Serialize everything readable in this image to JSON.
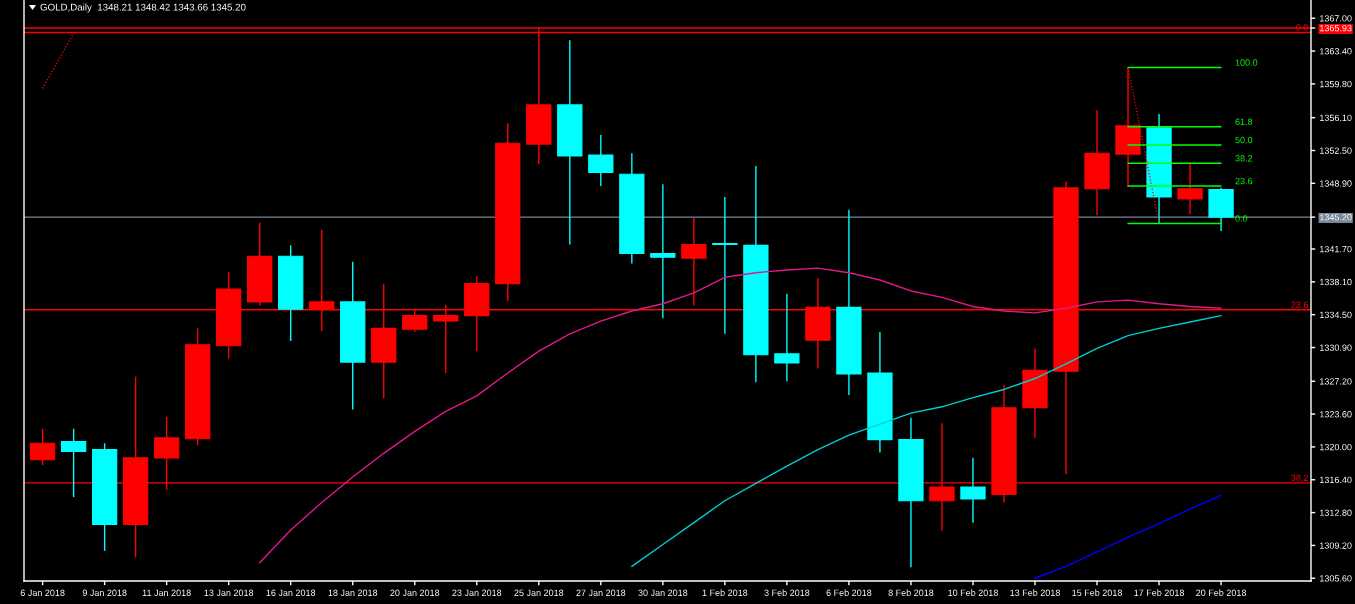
{
  "chart_data": {
    "type": "candlestick",
    "title": "GOLD,Daily  1348.21 1348.42 1343.66 1345.20",
    "categories": [
      "6 Jan 2018",
      null,
      "9 Jan 2018",
      null,
      "11 Jan 2018",
      null,
      "13 Jan 2018",
      null,
      "16 Jan 2018",
      null,
      "18 Jan 2018",
      null,
      "20 Jan 2018",
      null,
      "23 Jan 2018",
      null,
      "25 Jan 2018",
      null,
      "27 Jan 2018",
      null,
      "30 Jan 2018",
      null,
      "1 Feb 2018",
      null,
      "3 Feb 2018",
      null,
      "6 Feb 2018",
      null,
      "8 Feb 2018",
      null,
      "10 Feb 2018",
      null,
      "13 Feb 2018",
      null,
      "15 Feb 2018",
      null,
      "17 Feb 2018",
      null,
      "20 Feb 2018"
    ],
    "ohlc": [
      [
        1318.6,
        1322.0,
        1318.0,
        1320.4
      ],
      [
        1320.6,
        1322.0,
        1314.5,
        1319.5
      ],
      [
        1319.7,
        1320.4,
        1308.6,
        1311.5
      ],
      [
        1311.5,
        1327.7,
        1307.9,
        1318.8
      ],
      [
        1318.8,
        1323.3,
        1315.3,
        1321.0
      ],
      [
        1320.9,
        1333.0,
        1320.2,
        1331.2
      ],
      [
        1331.1,
        1339.2,
        1329.7,
        1337.3
      ],
      [
        1335.9,
        1344.6,
        1335.5,
        1340.9
      ],
      [
        1340.9,
        1342.1,
        1331.6,
        1335.1
      ],
      [
        1335.1,
        1343.8,
        1332.7,
        1335.9
      ],
      [
        1335.9,
        1340.3,
        1324.1,
        1329.3
      ],
      [
        1329.3,
        1337.9,
        1325.3,
        1333.0
      ],
      [
        1332.9,
        1335.1,
        1332.6,
        1334.4
      ],
      [
        1333.8,
        1335.6,
        1328.1,
        1334.4
      ],
      [
        1334.4,
        1338.7,
        1330.5,
        1337.9
      ],
      [
        1337.9,
        1355.5,
        1336.0,
        1353.3
      ],
      [
        1353.2,
        1365.9,
        1351.0,
        1357.5
      ],
      [
        1357.5,
        1364.6,
        1342.2,
        1351.9
      ],
      [
        1352.0,
        1354.2,
        1348.6,
        1350.1
      ],
      [
        1349.9,
        1352.2,
        1340.1,
        1341.2
      ],
      [
        1341.2,
        1348.8,
        1334.1,
        1340.8
      ],
      [
        1340.7,
        1345.1,
        1335.5,
        1342.2
      ],
      [
        1342.3,
        1347.4,
        1332.4,
        1342.2
      ],
      [
        1342.1,
        1350.8,
        1327.1,
        1330.1
      ],
      [
        1330.2,
        1336.8,
        1327.2,
        1329.2
      ],
      [
        1331.7,
        1338.5,
        1328.6,
        1335.3
      ],
      [
        1335.3,
        1346.0,
        1325.7,
        1328.0
      ],
      [
        1328.1,
        1332.6,
        1319.4,
        1320.8
      ],
      [
        1320.8,
        1323.2,
        1306.8,
        1314.1
      ],
      [
        1314.1,
        1322.6,
        1310.8,
        1315.6
      ],
      [
        1315.6,
        1318.8,
        1311.7,
        1314.3
      ],
      [
        1314.8,
        1326.8,
        1313.9,
        1324.3
      ],
      [
        1324.3,
        1330.8,
        1321.0,
        1328.4
      ],
      [
        1328.3,
        1349.1,
        1317.0,
        1348.4
      ],
      [
        1348.3,
        1356.9,
        1345.4,
        1352.2
      ],
      [
        1352.1,
        1361.6,
        1348.5,
        1355.2
      ],
      [
        1355.0,
        1356.5,
        1344.5,
        1347.4
      ],
      [
        1347.2,
        1351.2,
        1345.5,
        1348.3
      ],
      [
        1348.21,
        1348.42,
        1343.66,
        1345.2
      ]
    ],
    "colors": [
      "#ff0000",
      "#00ffff",
      "#00ffff",
      "#ff0000",
      "#ff0000",
      "#ff0000",
      "#ff0000",
      "#ff0000",
      "#00ffff",
      "#ff0000",
      "#00ffff",
      "#ff0000",
      "#ff0000",
      "#ff0000",
      "#ff0000",
      "#ff0000",
      "#ff0000",
      "#00ffff",
      "#00ffff",
      "#00ffff",
      "#00ffff",
      "#ff0000",
      "#00ffff",
      "#00ffff",
      "#00ffff",
      "#ff0000",
      "#00ffff",
      "#00ffff",
      "#00ffff",
      "#ff0000",
      "#00ffff",
      "#ff0000",
      "#ff0000",
      "#ff0000",
      "#ff0000",
      "#ff0000",
      "#00ffff",
      "#ff0000",
      "#00ffff"
    ],
    "series": [
      {
        "type": "line",
        "color": "#e0188c",
        "values": [
          null,
          null,
          null,
          null,
          null,
          null,
          null,
          1307.3,
          1310.9,
          1313.9,
          1316.7,
          1319.3,
          1321.7,
          1323.9,
          1325.6,
          1328.1,
          1330.5,
          1332.4,
          1333.8,
          1334.9,
          1335.7,
          1336.9,
          1338.6,
          1339.1,
          1339.4,
          1339.6,
          1339.1,
          1338.3,
          1337.1,
          1336.4,
          1335.4,
          1334.9,
          1334.7,
          1335.2,
          1335.9,
          1336.1,
          1335.7,
          1335.4,
          1335.2
        ]
      },
      {
        "type": "line",
        "color": "#00ced1",
        "values": [
          null,
          null,
          null,
          null,
          null,
          null,
          null,
          null,
          null,
          null,
          null,
          null,
          null,
          null,
          null,
          null,
          null,
          null,
          null,
          1306.9,
          1309.3,
          1311.7,
          1314.1,
          1316.0,
          1317.9,
          1319.7,
          1321.3,
          1322.5,
          1323.7,
          1324.4,
          1325.4,
          1326.3,
          1327.5,
          1329.1,
          1330.8,
          1332.2,
          1333.0,
          1333.7,
          1334.4
        ]
      },
      {
        "type": "line",
        "color": "#0000ff",
        "values": [
          null,
          null,
          null,
          null,
          null,
          null,
          null,
          null,
          null,
          null,
          null,
          null,
          null,
          null,
          null,
          null,
          null,
          null,
          null,
          null,
          null,
          null,
          null,
          null,
          null,
          null,
          null,
          null,
          null,
          null,
          null,
          null,
          1305.6,
          1306.9,
          1308.5,
          1310.1,
          1311.6,
          1313.2,
          1314.7
        ]
      },
      {
        "type": "line",
        "color": "#ff0000",
        "line_style": "dotted",
        "values": [
          1359.3,
          1365.4,
          null,
          null,
          null,
          null,
          null,
          null,
          null,
          null,
          null,
          null,
          null,
          null,
          null,
          null,
          null,
          null,
          null,
          null,
          null,
          null,
          null,
          null,
          null,
          null,
          null,
          null,
          null,
          null,
          null,
          null,
          null,
          null,
          null,
          null,
          null,
          null,
          null
        ]
      },
      {
        "type": "line",
        "color": "#ff0000",
        "line_style": "dotted",
        "values": [
          null,
          null,
          null,
          null,
          null,
          null,
          null,
          null,
          null,
          null,
          null,
          null,
          null,
          null,
          null,
          null,
          null,
          null,
          null,
          null,
          null,
          null,
          null,
          null,
          null,
          null,
          null,
          null,
          null,
          null,
          null,
          null,
          null,
          null,
          null,
          1361.6,
          1344.5,
          null,
          null
        ]
      },
      {
        "type": "line",
        "name": "100.0",
        "color": "#00ff00",
        "values": [
          null,
          null,
          null,
          null,
          null,
          null,
          null,
          null,
          null,
          null,
          null,
          null,
          null,
          null,
          null,
          null,
          null,
          null,
          null,
          null,
          null,
          null,
          null,
          null,
          null,
          null,
          null,
          null,
          null,
          null,
          null,
          null,
          null,
          null,
          null,
          1361.6,
          1361.6,
          1361.6,
          1361.6
        ]
      },
      {
        "type": "line",
        "name": "61.8",
        "color": "#00ff00",
        "values": [
          null,
          null,
          null,
          null,
          null,
          null,
          null,
          null,
          null,
          null,
          null,
          null,
          null,
          null,
          null,
          null,
          null,
          null,
          null,
          null,
          null,
          null,
          null,
          null,
          null,
          null,
          null,
          null,
          null,
          null,
          null,
          null,
          null,
          null,
          null,
          1355.1,
          1355.1,
          1355.1,
          1355.1
        ]
      },
      {
        "type": "line",
        "name": "50.0",
        "color": "#00ff00",
        "values": [
          null,
          null,
          null,
          null,
          null,
          null,
          null,
          null,
          null,
          null,
          null,
          null,
          null,
          null,
          null,
          null,
          null,
          null,
          null,
          null,
          null,
          null,
          null,
          null,
          null,
          null,
          null,
          null,
          null,
          null,
          null,
          null,
          null,
          null,
          null,
          1353.1,
          1353.1,
          1353.1,
          1353.1
        ]
      },
      {
        "type": "line",
        "name": "38.2",
        "color": "#00ff00",
        "values": [
          null,
          null,
          null,
          null,
          null,
          null,
          null,
          null,
          null,
          null,
          null,
          null,
          null,
          null,
          null,
          null,
          null,
          null,
          null,
          null,
          null,
          null,
          null,
          null,
          null,
          null,
          null,
          null,
          null,
          null,
          null,
          null,
          null,
          null,
          null,
          1351.1,
          1351.1,
          1351.1,
          1351.1
        ]
      },
      {
        "type": "line",
        "name": "23.6",
        "color": "#00ff00",
        "values": [
          null,
          null,
          null,
          null,
          null,
          null,
          null,
          null,
          null,
          null,
          null,
          null,
          null,
          null,
          null,
          null,
          null,
          null,
          null,
          null,
          null,
          null,
          null,
          null,
          null,
          null,
          null,
          null,
          null,
          null,
          null,
          null,
          null,
          null,
          null,
          1348.6,
          1348.6,
          1348.6,
          1348.6
        ]
      },
      {
        "type": "line",
        "name": "0.0",
        "color": "#00ff00",
        "values": [
          null,
          null,
          null,
          null,
          null,
          null,
          null,
          null,
          null,
          null,
          null,
          null,
          null,
          null,
          null,
          null,
          null,
          null,
          null,
          null,
          null,
          null,
          null,
          null,
          null,
          null,
          null,
          null,
          null,
          null,
          null,
          null,
          null,
          null,
          null,
          1344.5,
          1344.5,
          1344.5,
          1344.5
        ]
      }
    ],
    "ylim": [
      1305.3,
      1369.0
    ],
    "yticks": [
      {
        "value": 1367.0,
        "label": "1367.00"
      },
      {
        "value": 1365.93,
        "label": "1365.93"
      },
      {
        "value": 1363.4,
        "label": "1363.40"
      },
      {
        "value": 1359.8,
        "label": "1359.80"
      },
      {
        "value": 1356.1,
        "label": "1356.10"
      },
      {
        "value": 1352.5,
        "label": "1352.50"
      },
      {
        "value": 1348.9,
        "label": "1348.90"
      },
      {
        "value": 1345.2,
        "label": "1345.20"
      },
      {
        "value": 1341.7,
        "label": "1341.70"
      },
      {
        "value": 1338.1,
        "label": "1338.10"
      },
      {
        "value": 1334.5,
        "label": "1334.50"
      },
      {
        "value": 1330.9,
        "label": "1330.90"
      },
      {
        "value": 1327.2,
        "label": "1327.20"
      },
      {
        "value": 1323.6,
        "label": "1323.60"
      },
      {
        "value": 1320.0,
        "label": "1320.00"
      },
      {
        "value": 1316.4,
        "label": "1316.40"
      },
      {
        "value": 1312.8,
        "label": "1312.80"
      },
      {
        "value": 1309.2,
        "label": "1309.20"
      },
      {
        "value": 1305.6,
        "label": "1305.60"
      }
    ],
    "ref_lines": [
      {
        "axis": "y",
        "value": 1365.93,
        "color": "#ff0000"
      },
      {
        "axis": "y",
        "value": 1365.44,
        "color": "#ff0000"
      },
      {
        "axis": "y",
        "value": 1335.04,
        "color": "#ff0000"
      },
      {
        "axis": "y",
        "value": 1316.06,
        "color": "#ff0000"
      },
      {
        "axis": "y",
        "value": 1345.2,
        "color": "#778899"
      }
    ],
    "annotations": [
      {
        "text": "0.0",
        "y": 1365.44
      },
      {
        "text": "23.6",
        "y": 1335.04
      },
      {
        "text": "38.2",
        "y": 1316.06
      }
    ]
  }
}
